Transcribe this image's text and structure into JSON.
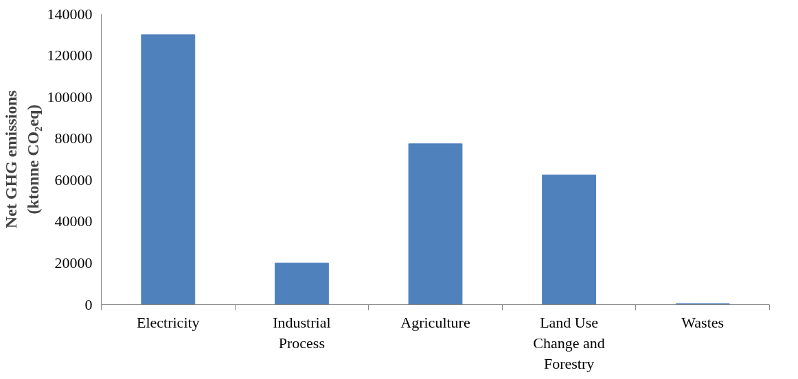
{
  "chart_data": {
    "type": "bar",
    "ylabel": "Net GHG emissions (ktonne CO₂eq)",
    "categories": [
      "Electricity",
      "Industrial Process",
      "Agriculture",
      "Land Use Change and Forestry",
      "Wastes"
    ],
    "values": [
      130000,
      20000,
      77500,
      62500,
      500
    ],
    "color": "#4f81bd",
    "ylim": [
      0,
      140000
    ],
    "yticks": [
      0,
      20000,
      40000,
      60000,
      80000,
      100000,
      120000,
      140000
    ],
    "grid": false
  }
}
